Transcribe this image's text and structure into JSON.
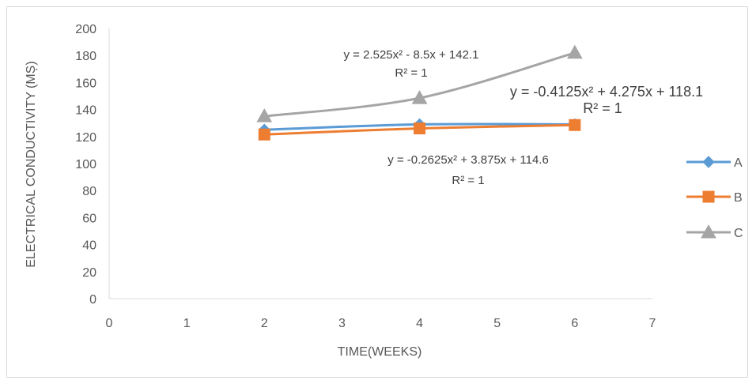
{
  "chart_data": {
    "type": "line",
    "title": "",
    "xlabel": "TIME(WEEKS)",
    "ylabel": "ELECTRICAL CONDUCTIVITY (MȘ)",
    "xlim": [
      0,
      7
    ],
    "ylim": [
      0,
      200
    ],
    "x_ticks": [
      "0",
      "1",
      "2",
      "3",
      "4",
      "5",
      "6",
      "7"
    ],
    "y_ticks": [
      "0",
      "20",
      "40",
      "60",
      "80",
      "100",
      "120",
      "140",
      "160",
      "180",
      "200"
    ],
    "grid": false,
    "legend_position": "right",
    "x": [
      2,
      4,
      6
    ],
    "series": [
      {
        "name": "A",
        "values": [
          125,
          129,
          129
        ],
        "color": "#5b9bd5",
        "marker": "diamond"
      },
      {
        "name": "B",
        "values": [
          121.5,
          126,
          128.5
        ],
        "color": "#ed7d31",
        "marker": "square"
      },
      {
        "name": "C",
        "values": [
          135,
          148.5,
          182
        ],
        "color": "#a5a5a5",
        "marker": "triangle"
      }
    ],
    "annotations": [
      {
        "eq": "y = 2.525x² - 8.5x + 142.1",
        "r2": "R² = 1"
      },
      {
        "eq": "y = -0.4125x² + 4.275x + 118.1",
        "r2": "R² = 1"
      },
      {
        "eq": "y = -0.2625x² + 3.875x + 114.6",
        "r2": "R² = 1"
      }
    ]
  }
}
